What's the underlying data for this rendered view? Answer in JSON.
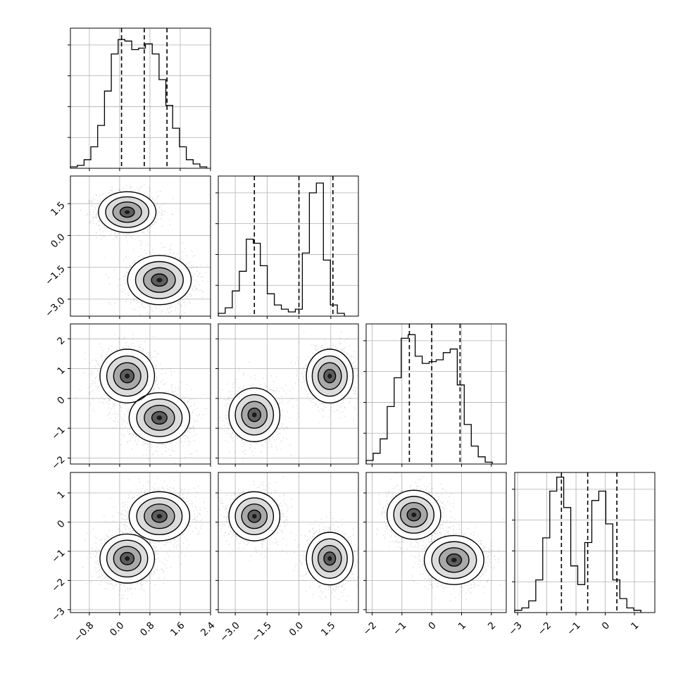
{
  "chart_data": {
    "type": "corner",
    "grid": true,
    "variables": [
      {
        "index": 0,
        "range": [
          -1.3,
          2.4
        ],
        "ticks": [
          -0.8,
          0.0,
          0.8,
          1.6,
          2.4
        ],
        "tick_labels": [
          "−0.8",
          "0.0",
          "0.8",
          "1.6",
          "2.4"
        ]
      },
      {
        "index": 1,
        "range": [
          -3.8,
          2.8
        ],
        "ticks": [
          -3.0,
          -1.5,
          0.0,
          1.5
        ],
        "tick_labels": [
          "−3.0",
          "−1.5",
          "0.0",
          "1.5"
        ]
      },
      {
        "index": 2,
        "range": [
          -2.2,
          2.5
        ],
        "ticks": [
          -2,
          -1,
          0,
          1,
          2
        ],
        "tick_labels": [
          "−2",
          "−1",
          "0",
          "1",
          "2"
        ]
      },
      {
        "index": 3,
        "range": [
          -3.1,
          1.7
        ],
        "ticks": [
          -3,
          -2,
          -1,
          0,
          1
        ],
        "tick_labels": [
          "−3",
          "−2",
          "−1",
          "0",
          "1"
        ]
      }
    ],
    "histograms": [
      {
        "var": 0,
        "edges_start": -1.3,
        "bin_width": 0.18,
        "counts": [
          1,
          2,
          6,
          15,
          30,
          54,
          80,
          90,
          89,
          83,
          84,
          87,
          80,
          62,
          44,
          28,
          15,
          6,
          3,
          1
        ],
        "ymax": 98,
        "quantiles": [
          0.05,
          0.65,
          1.25
        ]
      },
      {
        "var": 1,
        "edges_start": -3.8,
        "bin_width": 0.33,
        "counts": [
          2,
          6,
          18,
          32,
          55,
          52,
          36,
          16,
          8,
          5,
          3,
          5,
          45,
          88,
          95,
          40,
          8,
          2
        ],
        "ymax": 100,
        "quantiles": [
          -2.1,
          0.0,
          1.6
        ]
      },
      {
        "var": 2,
        "edges_start": -2.2,
        "bin_width": 0.235,
        "counts": [
          2,
          6,
          14,
          32,
          48,
          70,
          72,
          60,
          56,
          57,
          58,
          62,
          64,
          44,
          22,
          10,
          4,
          1
        ],
        "ymax": 78,
        "quantiles": [
          -0.75,
          0.0,
          0.95
        ]
      },
      {
        "var": 3,
        "edges_start": -3.1,
        "bin_width": 0.24,
        "counts": [
          1,
          2,
          5,
          14,
          32,
          52,
          58,
          45,
          20,
          12,
          30,
          48,
          52,
          38,
          14,
          6,
          2,
          1
        ],
        "ymax": 60,
        "quantiles": [
          -1.5,
          -0.6,
          0.4
        ]
      }
    ],
    "joints": [
      {
        "row": 1,
        "col": 0,
        "modes": [
          {
            "x": 0.2,
            "y": 1.1,
            "sx": 0.38,
            "sy": 0.48
          },
          {
            "x": 1.05,
            "y": -2.1,
            "sx": 0.42,
            "sy": 0.58
          }
        ]
      },
      {
        "row": 2,
        "col": 0,
        "modes": [
          {
            "x": 0.2,
            "y": 0.75,
            "sx": 0.36,
            "sy": 0.45
          },
          {
            "x": 1.05,
            "y": -0.65,
            "sx": 0.4,
            "sy": 0.42
          }
        ]
      },
      {
        "row": 2,
        "col": 1,
        "modes": [
          {
            "x": -2.1,
            "y": -0.55,
            "sx": 0.6,
            "sy": 0.45
          },
          {
            "x": 1.45,
            "y": 0.75,
            "sx": 0.55,
            "sy": 0.45
          }
        ]
      },
      {
        "row": 3,
        "col": 0,
        "modes": [
          {
            "x": 0.2,
            "y": -1.25,
            "sx": 0.36,
            "sy": 0.42
          },
          {
            "x": 1.05,
            "y": 0.2,
            "sx": 0.4,
            "sy": 0.42
          }
        ]
      },
      {
        "row": 3,
        "col": 1,
        "modes": [
          {
            "x": -2.1,
            "y": 0.2,
            "sx": 0.6,
            "sy": 0.42
          },
          {
            "x": 1.45,
            "y": -1.25,
            "sx": 0.55,
            "sy": 0.45
          }
        ]
      },
      {
        "row": 3,
        "col": 2,
        "modes": [
          {
            "x": -0.6,
            "y": 0.25,
            "sx": 0.45,
            "sy": 0.42
          },
          {
            "x": 0.75,
            "y": -1.3,
            "sx": 0.5,
            "sy": 0.42
          }
        ]
      }
    ],
    "colors": {
      "axes": "#000000",
      "grid": "#b0b0b0",
      "scatter": "#000000",
      "fill": "#000000"
    }
  }
}
